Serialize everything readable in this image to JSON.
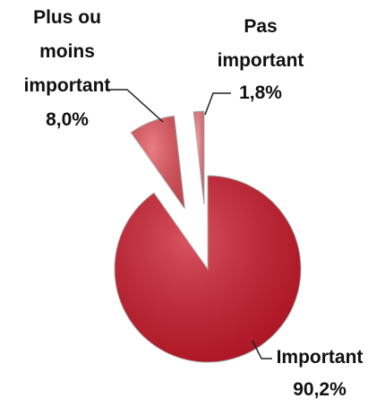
{
  "chart_data": {
    "type": "pie",
    "categories": [
      "Important",
      "Plus ou moins important",
      "Pas important"
    ],
    "values": [
      90.2,
      8.0,
      1.8
    ],
    "value_labels": [
      "90,2%",
      "8,0%",
      "1,8%"
    ],
    "colors": [
      "#cc1a2b",
      "#e4525c",
      "#ea7a80"
    ]
  }
}
